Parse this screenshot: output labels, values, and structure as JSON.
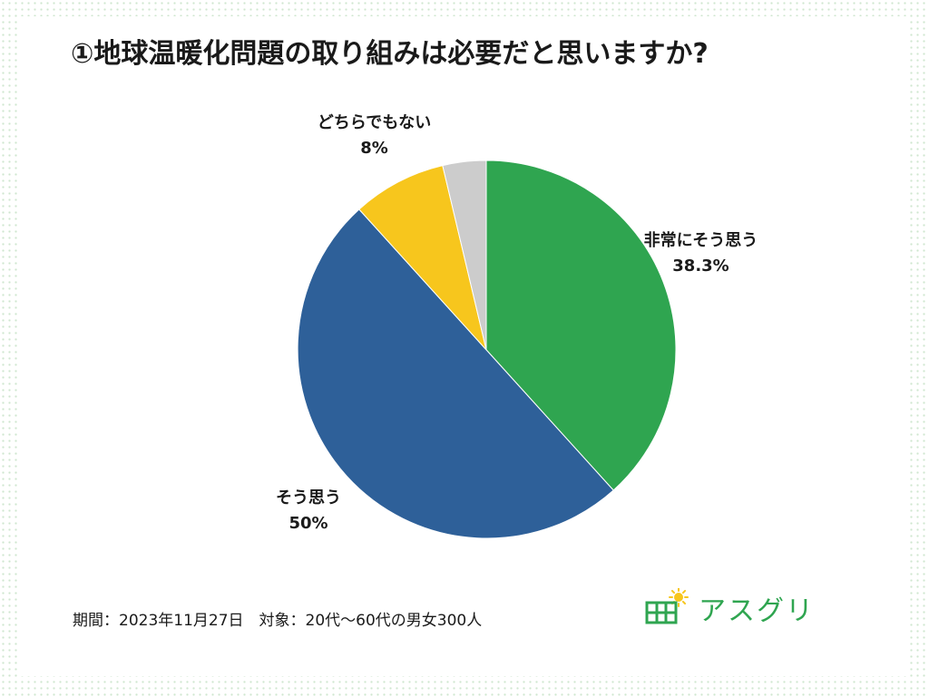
{
  "chart_data": {
    "type": "pie",
    "title": "①地球温暖化問題の取り組みは必要だと思いますか?",
    "start_angle_deg": 0,
    "direction": "clockwise",
    "slices": [
      {
        "name": "非常にそう思う",
        "value": 38.3,
        "label": "38.3%",
        "color": "#2fa550",
        "label_visible": true
      },
      {
        "name": "そう思う",
        "value": 50,
        "label": "50%",
        "color": "#2e6099",
        "label_visible": true
      },
      {
        "name": "どちらでもない",
        "value": 8,
        "label": "8%",
        "color": "#f7c61d",
        "label_visible": true
      },
      {
        "name": "",
        "value": 3.7,
        "label": "",
        "color": "#cccccc",
        "label_visible": false
      }
    ]
  },
  "footer": {
    "period_text": "期間：2023年11月27日　対象：20代～60代の男女300人"
  },
  "logo": {
    "icon": "solar-panel-sun-icon",
    "text": "アスグリ",
    "color": "#2fa550",
    "accent": "#f7c61d"
  }
}
